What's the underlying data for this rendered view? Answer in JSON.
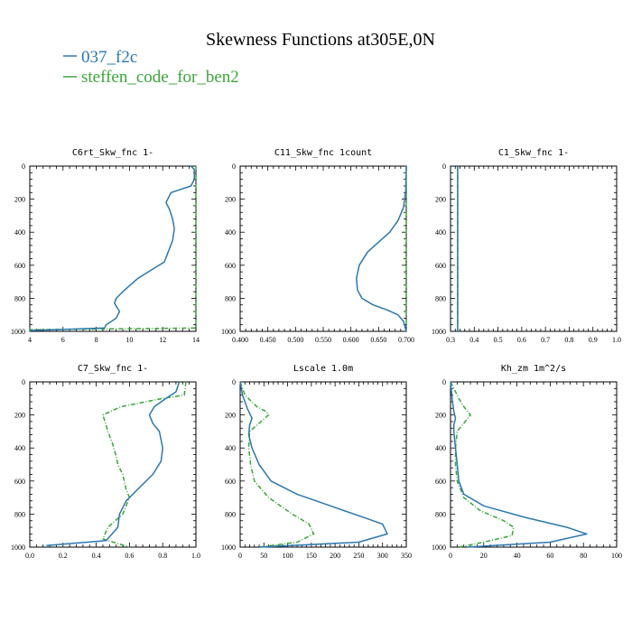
{
  "figure": {
    "title": "Skewness Functions at305E,0N",
    "legend": [
      {
        "label": "037_f2c",
        "color": "#2a78b0"
      },
      {
        "label": "steffen_code_for_ben2",
        "color": "#3aa63a"
      }
    ]
  },
  "chart_data": [
    {
      "type": "line",
      "title": "C6rt_Skw_fnc   1-",
      "xlim": [
        4,
        14
      ],
      "ylim": [
        0,
        1000
      ],
      "y_inverted": true,
      "xticks": [
        "4",
        "6",
        "8",
        "10",
        "12",
        "14"
      ],
      "yticks": [
        "0",
        "200",
        "400",
        "600",
        "800",
        "1000"
      ],
      "series": [
        {
          "color": "#2a78b0",
          "style": "solid",
          "x": [
            13.7,
            13.9,
            13.9,
            13.7,
            12.5,
            12.2,
            12.4,
            12.6,
            12.7,
            12.6,
            12.1,
            10.5,
            9.6,
            9.2,
            9.1,
            9.4,
            9.2,
            8.6,
            8.5,
            4.0
          ],
          "y": [
            0,
            20,
            80,
            120,
            160,
            220,
            260,
            320,
            380,
            450,
            580,
            680,
            760,
            800,
            830,
            880,
            920,
            960,
            980,
            995
          ]
        },
        {
          "color": "#3aa63a",
          "style": "dashdot",
          "x": [
            14.0,
            14.0,
            4.0,
            4.0
          ],
          "y": [
            0,
            980,
            990,
            1000
          ]
        }
      ]
    },
    {
      "type": "line",
      "title": "C11_Skw_fnc   1count",
      "xlim": [
        0.4,
        0.7
      ],
      "ylim": [
        0,
        1000
      ],
      "y_inverted": true,
      "xticks": [
        "0.400",
        "0.450",
        "0.500",
        "0.550",
        "0.600",
        "0.650",
        "0.700"
      ],
      "yticks": [
        "0",
        "200",
        "400",
        "600",
        "800",
        "1000"
      ],
      "series": [
        {
          "color": "#2a78b0",
          "style": "solid",
          "x": [
            0.7,
            0.699,
            0.695,
            0.685,
            0.67,
            0.65,
            0.63,
            0.615,
            0.61,
            0.612,
            0.62,
            0.64,
            0.665,
            0.685,
            0.695,
            0.7
          ],
          "y": [
            0,
            150,
            250,
            330,
            400,
            460,
            520,
            600,
            680,
            750,
            800,
            840,
            870,
            900,
            940,
            1000
          ]
        },
        {
          "color": "#3aa63a",
          "style": "dashdot",
          "x": [
            0.7,
            0.7
          ],
          "y": [
            0,
            1000
          ]
        }
      ]
    },
    {
      "type": "line",
      "title": "C1_Skw_fnc   1-",
      "xlim": [
        0.3,
        1.0
      ],
      "ylim": [
        0,
        1000
      ],
      "y_inverted": true,
      "xticks": [
        "0.3",
        "0.4",
        "0.5",
        "0.6",
        "0.7",
        "0.8",
        "0.9",
        "1.0"
      ],
      "yticks": [
        "0",
        "200",
        "400",
        "600",
        "800",
        "1000"
      ],
      "series": [
        {
          "color": "#2a78b0",
          "style": "solid",
          "x": [
            0.33,
            0.33
          ],
          "y": [
            0,
            1000
          ]
        },
        {
          "color": "#3aa63a",
          "style": "dashdot",
          "x": [
            0.33,
            0.33
          ],
          "y": [
            0,
            1000
          ]
        }
      ]
    },
    {
      "type": "line",
      "title": "C7_Skw_fnc   1-",
      "xlim": [
        0.0,
        1.0
      ],
      "ylim": [
        0,
        1000
      ],
      "y_inverted": true,
      "xticks": [
        "0.0",
        "0.2",
        "0.4",
        "0.6",
        "0.8",
        "1.0"
      ],
      "yticks": [
        "0",
        "200",
        "400",
        "600",
        "800",
        "1000"
      ],
      "series": [
        {
          "color": "#2a78b0",
          "style": "solid",
          "x": [
            0.9,
            0.88,
            0.82,
            0.75,
            0.72,
            0.74,
            0.78,
            0.8,
            0.79,
            0.74,
            0.66,
            0.58,
            0.54,
            0.53,
            0.46,
            0.1
          ],
          "y": [
            0,
            60,
            100,
            150,
            200,
            250,
            300,
            400,
            480,
            560,
            640,
            720,
            800,
            880,
            960,
            990
          ]
        },
        {
          "color": "#3aa63a",
          "style": "dashdot",
          "x": [
            0.94,
            0.93,
            0.8,
            0.55,
            0.44,
            0.47,
            0.5,
            0.52,
            0.53,
            0.56,
            0.58,
            0.6,
            0.56,
            0.47,
            0.44,
            0.6
          ],
          "y": [
            0,
            80,
            100,
            150,
            200,
            300,
            380,
            450,
            500,
            560,
            650,
            700,
            800,
            880,
            950,
            1000
          ]
        }
      ]
    },
    {
      "type": "line",
      "title": "Lscale   1.0m",
      "xlim": [
        0,
        350
      ],
      "ylim": [
        0,
        1000
      ],
      "y_inverted": true,
      "xticks": [
        "0",
        "50",
        "100",
        "150",
        "200",
        "250",
        "300",
        "350"
      ],
      "yticks": [
        "0",
        "200",
        "400",
        "600",
        "800",
        "1000"
      ],
      "series": [
        {
          "color": "#2a78b0",
          "style": "solid",
          "x": [
            0,
            5,
            15,
            25,
            20,
            18,
            25,
            40,
            65,
            120,
            200,
            260,
            300,
            310,
            250,
            40
          ],
          "y": [
            0,
            80,
            160,
            220,
            260,
            320,
            400,
            500,
            600,
            680,
            760,
            820,
            860,
            920,
            970,
            1000
          ]
        },
        {
          "color": "#3aa63a",
          "style": "dashdot",
          "x": [
            0,
            10,
            35,
            55,
            60,
            40,
            20,
            18,
            22,
            30,
            60,
            110,
            145,
            155,
            120,
            40
          ],
          "y": [
            0,
            80,
            150,
            180,
            200,
            250,
            300,
            400,
            500,
            600,
            700,
            800,
            860,
            920,
            970,
            1000
          ]
        }
      ]
    },
    {
      "type": "line",
      "title": "Kh_zm   1m^2/s",
      "xlim": [
        0,
        100
      ],
      "ylim": [
        0,
        1000
      ],
      "y_inverted": true,
      "xticks": [
        "0",
        "20",
        "40",
        "60",
        "80",
        "100"
      ],
      "yticks": [
        "0",
        "200",
        "400",
        "600",
        "800",
        "1000"
      ],
      "series": [
        {
          "color": "#2a78b0",
          "style": "solid",
          "x": [
            0,
            1,
            2,
            3,
            2,
            2,
            3,
            4,
            5,
            8,
            20,
            45,
            70,
            82,
            60,
            10
          ],
          "y": [
            0,
            100,
            180,
            220,
            260,
            300,
            400,
            500,
            600,
            680,
            750,
            820,
            880,
            920,
            970,
            1000
          ]
        },
        {
          "color": "#3aa63a",
          "style": "dashdot",
          "x": [
            0,
            5,
            8,
            12,
            8,
            4,
            3,
            3,
            4,
            8,
            18,
            32,
            38,
            37,
            20,
            5
          ],
          "y": [
            0,
            100,
            150,
            200,
            250,
            300,
            400,
            500,
            600,
            700,
            780,
            840,
            880,
            930,
            970,
            1000
          ]
        }
      ]
    }
  ]
}
